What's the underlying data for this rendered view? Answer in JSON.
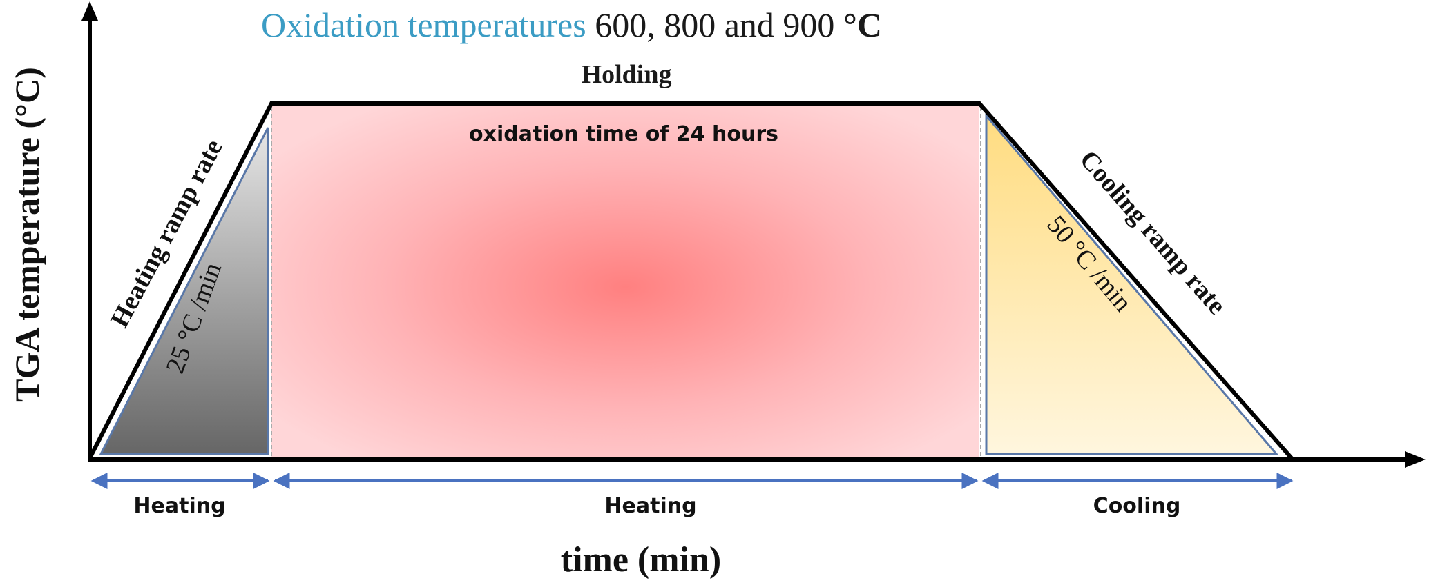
{
  "title": {
    "lead": "Oxidation temperatures",
    "values": " 600, 800 and 900 ",
    "unit": "°C"
  },
  "axes": {
    "y_label": "TGA temperature (°C)",
    "x_label": "time (min)"
  },
  "stages": {
    "holding_label": "Holding",
    "holding_note": "oxidation time of 24 hours",
    "heating_ramp_label": "Heating ramp rate",
    "heating_ramp_value": "25 °C /min",
    "cooling_ramp_label": "Cooling ramp rate",
    "cooling_ramp_value": "50 °C /min"
  },
  "phases": [
    "Heating",
    "Heating",
    "Cooling"
  ],
  "colors": {
    "title_accent": "#3b9cc4",
    "arrow_blue": "#4a72c0",
    "holding_center": "#ff8080",
    "holding_edge": "#ffd0d2",
    "heating_dark": "#6a6a6a",
    "heating_light": "#e4e4e4",
    "cooling_top": "#ffde8a",
    "cooling_bottom": "#fff5dc"
  }
}
